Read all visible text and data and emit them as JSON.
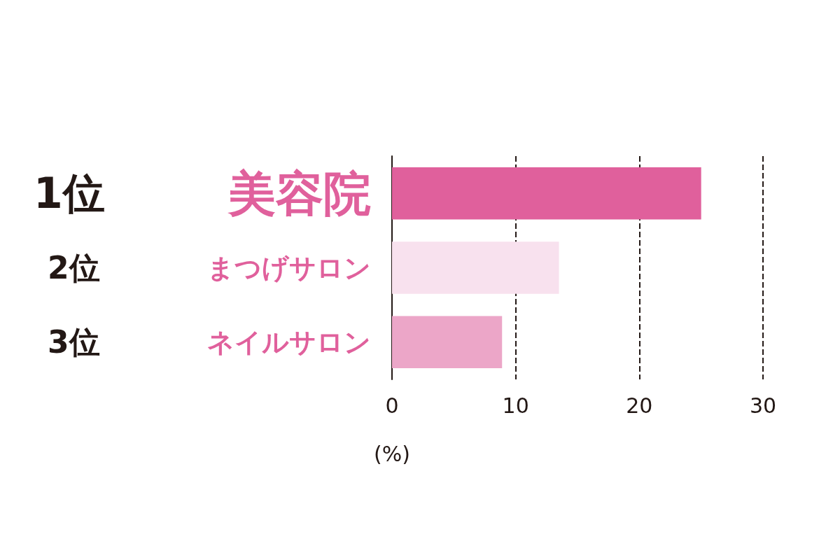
{
  "chart_data": {
    "type": "bar",
    "orientation": "horizontal",
    "categories": [
      "美容院",
      "まつげサロン",
      "ネイルサロン"
    ],
    "values": [
      25,
      13.5,
      8.9
    ],
    "colors": [
      "#e0609c",
      "#f8e1ee",
      "#eca6c8"
    ],
    "annotations": [
      "1位",
      "2位",
      "3位"
    ],
    "xlim": [
      0,
      30
    ],
    "xticks": [
      0,
      10,
      20,
      30
    ],
    "xlabel": "(%)",
    "grid": "x",
    "line_style": "dashed"
  }
}
